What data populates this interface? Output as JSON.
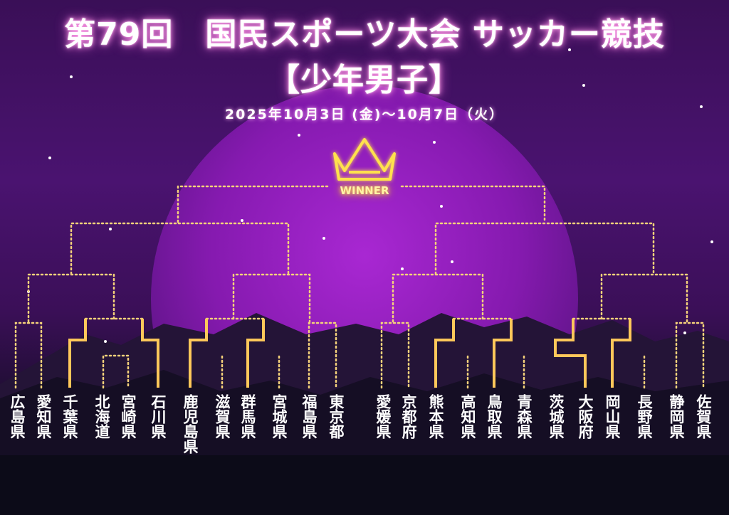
{
  "header": {
    "title_line1": "第79回　国民スポーツ大会 サッカー競技",
    "title_line2": "【少年男子】",
    "dates": "2025年10月3日 (金)～10月7日（火）"
  },
  "bracket": {
    "winner_label": "WINNER",
    "teams": [
      "広島県",
      "愛知県",
      "千葉県",
      "北海道",
      "宮崎県",
      "石川県",
      "鹿児島県",
      "滋賀県",
      "群馬県",
      "宮城県",
      "福島県",
      "東京都",
      "愛媛県",
      "京都府",
      "熊本県",
      "高知県",
      "鳥取県",
      "青森県",
      "茨城県",
      "大阪府",
      "岡山県",
      "長野県",
      "静岡県",
      "佐賀県"
    ]
  },
  "colors": {
    "bracket_line": "#f5d27a",
    "advanced_line": "#ffc85a",
    "winner_glow": "#ffe14d",
    "title_glow": "#ff9ee8",
    "moon": "#a020c8"
  },
  "icons": {
    "crown": "crown-icon"
  }
}
